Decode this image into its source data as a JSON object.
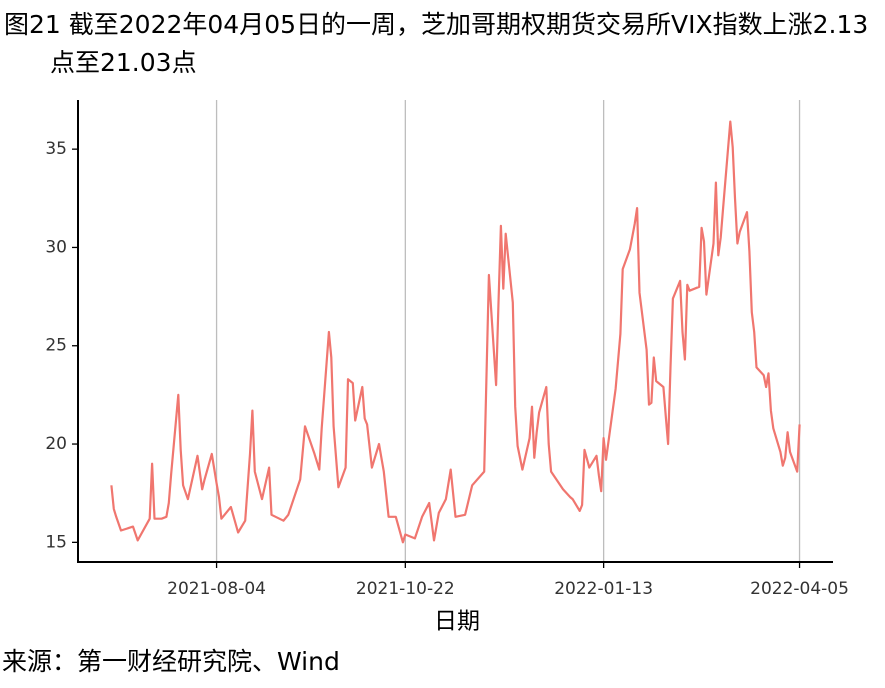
{
  "chart_data": {
    "type": "line",
    "title": "图21  截至2022年04月05日的一周，芝加哥期权期货交易所VIX指数上涨2.13点至21.03点",
    "xlabel": "日期",
    "source": "来源：第一财经研究院、Wind",
    "x": [
      "2021-06-21",
      "2021-06-22",
      "2021-06-23",
      "2021-06-25",
      "2021-06-30",
      "2021-07-02",
      "2021-07-07",
      "2021-07-08",
      "2021-07-09",
      "2021-07-12",
      "2021-07-14",
      "2021-07-15",
      "2021-07-16",
      "2021-07-19",
      "2021-07-20",
      "2021-07-21",
      "2021-07-23",
      "2021-07-27",
      "2021-07-29",
      "2021-07-30",
      "2021-08-02",
      "2021-08-04",
      "2021-08-05",
      "2021-08-06",
      "2021-08-10",
      "2021-08-13",
      "2021-08-16",
      "2021-08-18",
      "2021-08-19",
      "2021-08-20",
      "2021-08-23",
      "2021-08-26",
      "2021-08-27",
      "2021-09-01",
      "2021-09-03",
      "2021-09-08",
      "2021-09-10",
      "2021-09-14",
      "2021-09-16",
      "2021-09-17",
      "2021-09-20",
      "2021-09-21",
      "2021-09-22",
      "2021-09-24",
      "2021-09-27",
      "2021-09-28",
      "2021-09-30",
      "2021-10-01",
      "2021-10-04",
      "2021-10-05",
      "2021-10-06",
      "2021-10-08",
      "2021-10-11",
      "2021-10-13",
      "2021-10-15",
      "2021-10-18",
      "2021-10-21",
      "2021-10-22",
      "2021-10-26",
      "2021-10-29",
      "2021-11-01",
      "2021-11-03",
      "2021-11-05",
      "2021-11-08",
      "2021-11-10",
      "2021-11-12",
      "2021-11-16",
      "2021-11-19",
      "2021-11-24",
      "2021-11-26",
      "2021-11-29",
      "2021-11-30",
      "2021-12-01",
      "2021-12-02",
      "2021-12-03",
      "2021-12-06",
      "2021-12-07",
      "2021-12-08",
      "2021-12-10",
      "2021-12-13",
      "2021-12-14",
      "2021-12-15",
      "2021-12-16",
      "2021-12-17",
      "2021-12-20",
      "2021-12-21",
      "2021-12-22",
      "2021-12-27",
      "2021-12-30",
      "2021-12-31",
      "2022-01-03",
      "2022-01-04",
      "2022-01-05",
      "2022-01-07",
      "2022-01-10",
      "2022-01-11",
      "2022-01-12",
      "2022-01-13",
      "2022-01-14",
      "2022-01-18",
      "2022-01-20",
      "2022-01-21",
      "2022-01-24",
      "2022-01-26",
      "2022-01-27",
      "2022-01-28",
      "2022-01-31",
      "2022-02-01",
      "2022-02-02",
      "2022-02-03",
      "2022-02-04",
      "2022-02-07",
      "2022-02-08",
      "2022-02-09",
      "2022-02-10",
      "2022-02-11",
      "2022-02-14",
      "2022-02-15",
      "2022-02-16",
      "2022-02-17",
      "2022-02-18",
      "2022-02-22",
      "2022-02-23",
      "2022-02-24",
      "2022-02-25",
      "2022-02-28",
      "2022-03-01",
      "2022-03-02",
      "2022-03-03",
      "2022-03-04",
      "2022-03-07",
      "2022-03-08",
      "2022-03-09",
      "2022-03-10",
      "2022-03-11",
      "2022-03-14",
      "2022-03-15",
      "2022-03-16",
      "2022-03-17",
      "2022-03-18",
      "2022-03-21",
      "2022-03-22",
      "2022-03-23",
      "2022-03-24",
      "2022-03-25",
      "2022-03-28",
      "2022-03-29",
      "2022-03-30",
      "2022-03-31",
      "2022-04-01",
      "2022-04-04",
      "2022-04-05"
    ],
    "series": [
      {
        "name": "VIX",
        "color": "#f0766f",
        "values": [
          17.9,
          16.7,
          16.3,
          15.6,
          15.8,
          15.1,
          16.2,
          19.0,
          16.2,
          16.2,
          16.3,
          17.0,
          18.5,
          22.5,
          19.7,
          17.9,
          17.2,
          19.4,
          17.7,
          18.2,
          19.5,
          18.0,
          17.3,
          16.2,
          16.8,
          15.5,
          16.1,
          19.5,
          21.7,
          18.6,
          17.2,
          18.8,
          16.4,
          16.1,
          16.4,
          18.2,
          20.9,
          19.5,
          18.7,
          20.8,
          25.7,
          24.4,
          20.9,
          17.8,
          18.8,
          23.3,
          23.1,
          21.2,
          22.9,
          21.3,
          21.0,
          18.8,
          20.0,
          18.6,
          16.3,
          16.3,
          15.0,
          15.4,
          15.2,
          16.3,
          17.0,
          15.1,
          16.5,
          17.2,
          18.7,
          16.3,
          16.4,
          17.9,
          18.6,
          28.6,
          23.0,
          27.2,
          31.1,
          27.9,
          30.7,
          27.2,
          21.9,
          19.9,
          18.7,
          20.3,
          21.9,
          19.3,
          20.6,
          21.6,
          22.9,
          20.0,
          18.6,
          17.7,
          17.3,
          17.2,
          16.6,
          16.9,
          19.7,
          18.8,
          19.4,
          18.4,
          17.6,
          20.3,
          19.2,
          22.8,
          25.6,
          28.9,
          29.9,
          31.2,
          32.0,
          27.7,
          24.8,
          22.0,
          22.1,
          24.4,
          23.2,
          22.9,
          21.4,
          20.0,
          23.9,
          27.4,
          28.3,
          25.7,
          24.3,
          28.1,
          27.8,
          28.0,
          31.0,
          30.3,
          27.6,
          30.2,
          33.3,
          29.6,
          30.5,
          32.0,
          36.4,
          35.1,
          32.5,
          30.2,
          30.8,
          31.8,
          29.8,
          26.7,
          25.7,
          23.9,
          23.5,
          22.9,
          23.6,
          21.7,
          20.8,
          19.6,
          18.9,
          19.3,
          20.6,
          19.6,
          18.6,
          21.0
        ]
      }
    ],
    "xlim": [
      "2021-06-07",
      "2022-04-19"
    ],
    "xticks": [
      "2021-08-04",
      "2021-10-22",
      "2022-01-13",
      "2022-04-05"
    ],
    "ylim": [
      14,
      37.5
    ],
    "yticks": [
      15,
      20,
      25,
      30,
      35
    ],
    "grid": "x"
  }
}
